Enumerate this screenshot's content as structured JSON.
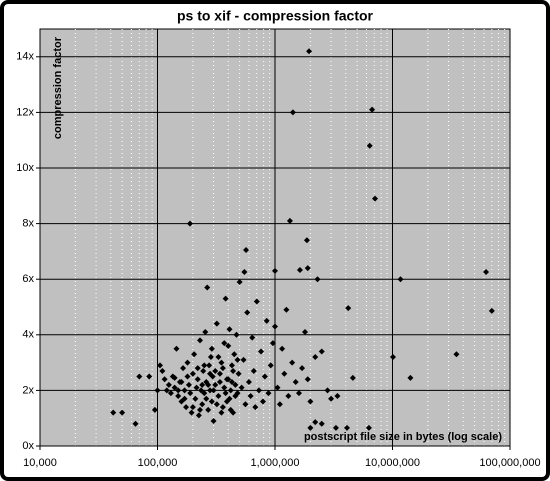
{
  "chart_data": {
    "type": "scatter",
    "title": "ps to xif - compression factor",
    "x_label": "postscript file size in bytes (log scale)",
    "y_label": "compression factor",
    "xscale": "log",
    "grid": true,
    "color": "#000000",
    "background": "#c0c0c0",
    "xlim": [
      10000,
      100000000
    ],
    "xticks": [
      {
        "value": 10000,
        "label": "10,000"
      },
      {
        "value": 100000,
        "label": "100,000"
      },
      {
        "value": 1000000,
        "label": "1,000,000"
      },
      {
        "value": 10000000,
        "label": "10,000,000"
      },
      {
        "value": 100000000,
        "label": "100,000,000"
      }
    ],
    "ylim": [
      0,
      15
    ],
    "yticks": [
      {
        "value": 0,
        "label": "0x"
      },
      {
        "value": 2,
        "label": "2x"
      },
      {
        "value": 4,
        "label": "4x"
      },
      {
        "value": 6,
        "label": "6x"
      },
      {
        "value": 8,
        "label": "8x"
      },
      {
        "value": 10,
        "label": "10x"
      },
      {
        "value": 12,
        "label": "12x"
      },
      {
        "value": 14,
        "label": "14x"
      }
    ],
    "x": [
      1950000,
      1420000,
      6700000,
      6400000,
      7100000,
      1340000,
      189000,
      567000,
      1870000,
      549000,
      1630000,
      1900000,
      2300000,
      11700000,
      62500000,
      70000000,
      4200000,
      35000000,
      10100000,
      14200000,
      4600000,
      3400000,
      6300000,
      3300000,
      4100000,
      2000000,
      2200000,
      2500000,
      42000,
      50000,
      65000,
      70000,
      85000,
      95000,
      100000,
      140000,
      1000000,
      105000,
      110000,
      115000,
      120000,
      125000,
      130000,
      135000,
      140000,
      145000,
      150000,
      155000,
      160000,
      165000,
      170000,
      175000,
      180000,
      185000,
      190000,
      195000,
      200000,
      205000,
      210000,
      215000,
      220000,
      225000,
      230000,
      235000,
      240000,
      245000,
      250000,
      255000,
      260000,
      265000,
      270000,
      275000,
      280000,
      285000,
      290000,
      295000,
      300000,
      310000,
      320000,
      330000,
      340000,
      350000,
      360000,
      370000,
      380000,
      390000,
      400000,
      410000,
      420000,
      430000,
      440000,
      450000,
      460000,
      470000,
      480000,
      490000,
      500000,
      520000,
      540000,
      560000,
      580000,
      600000,
      620000,
      640000,
      660000,
      680000,
      700000,
      730000,
      760000,
      790000,
      820000,
      850000,
      880000,
      920000,
      960000,
      1000000,
      1050000,
      1100000,
      1150000,
      1200000,
      1250000,
      1300000,
      1400000,
      1500000,
      1600000,
      1700000,
      1800000,
      1900000,
      2000000,
      2200000,
      2500000,
      2800000,
      3000000,
      180000,
      200000,
      220000,
      240000,
      260000,
      280000,
      300000,
      320000,
      340000,
      360000,
      380000,
      400000,
      420000,
      440000,
      460000,
      480000,
      150000,
      160000,
      170000,
      230000,
      250000,
      270000,
      290000,
      310000,
      330000,
      350000,
      370000,
      390000,
      410000,
      430000
    ],
    "values": [
      14.2,
      12.0,
      12.1,
      10.8,
      8.9,
      8.1,
      8.0,
      7.05,
      7.4,
      6.26,
      6.33,
      6.4,
      6.0,
      6.0,
      6.26,
      4.86,
      4.96,
      3.3,
      3.2,
      2.45,
      2.45,
      1.8,
      0.65,
      0.65,
      0.65,
      0.65,
      0.86,
      0.8,
      1.2,
      1.2,
      0.8,
      2.5,
      2.5,
      1.3,
      2.0,
      2.45,
      6.3,
      2.9,
      2.7,
      2.4,
      2.0,
      2.2,
      1.9,
      2.5,
      2.1,
      3.5,
      1.8,
      2.3,
      1.6,
      2.8,
      2.0,
      1.4,
      3.0,
      2.2,
      1.9,
      1.2,
      2.6,
      3.3,
      1.7,
      2.1,
      2.4,
      1.1,
      3.8,
      2.0,
      1.5,
      2.7,
      1.9,
      4.1,
      2.3,
      5.7,
      1.3,
      2.9,
      2.0,
      3.2,
      1.6,
      2.5,
      0.9,
      2.2,
      4.4,
      1.8,
      2.6,
      3.0,
      1.4,
      2.1,
      5.3,
      2.4,
      3.6,
      1.7,
      2.0,
      2.9,
      1.2,
      3.3,
      2.2,
      4.0,
      1.9,
      2.6,
      5.9,
      2.1,
      3.1,
      1.5,
      4.8,
      2.3,
      1.8,
      3.9,
      2.7,
      1.4,
      5.2,
      2.0,
      3.4,
      1.6,
      2.5,
      4.5,
      1.9,
      2.9,
      3.7,
      4.3,
      2.1,
      1.5,
      3.5,
      2.6,
      4.9,
      1.8,
      3.0,
      2.3,
      1.9,
      2.8,
      4.1,
      2.4,
      1.6,
      3.2,
      3.4,
      2.0,
      1.7,
      2.5,
      1.4,
      2.8,
      2.2,
      1.7,
      2.6,
      2.0,
      1.5,
      2.3,
      2.8,
      1.9,
      2.4,
      1.3,
      2.7,
      1.8,
      3.1,
      2.0,
      2.3,
      1.7,
      1.3,
      2.9,
      2.2,
      3.5,
      2.7,
      3.2,
      1.2,
      3.7,
      1.6,
      4.2,
      2.3
    ]
  }
}
